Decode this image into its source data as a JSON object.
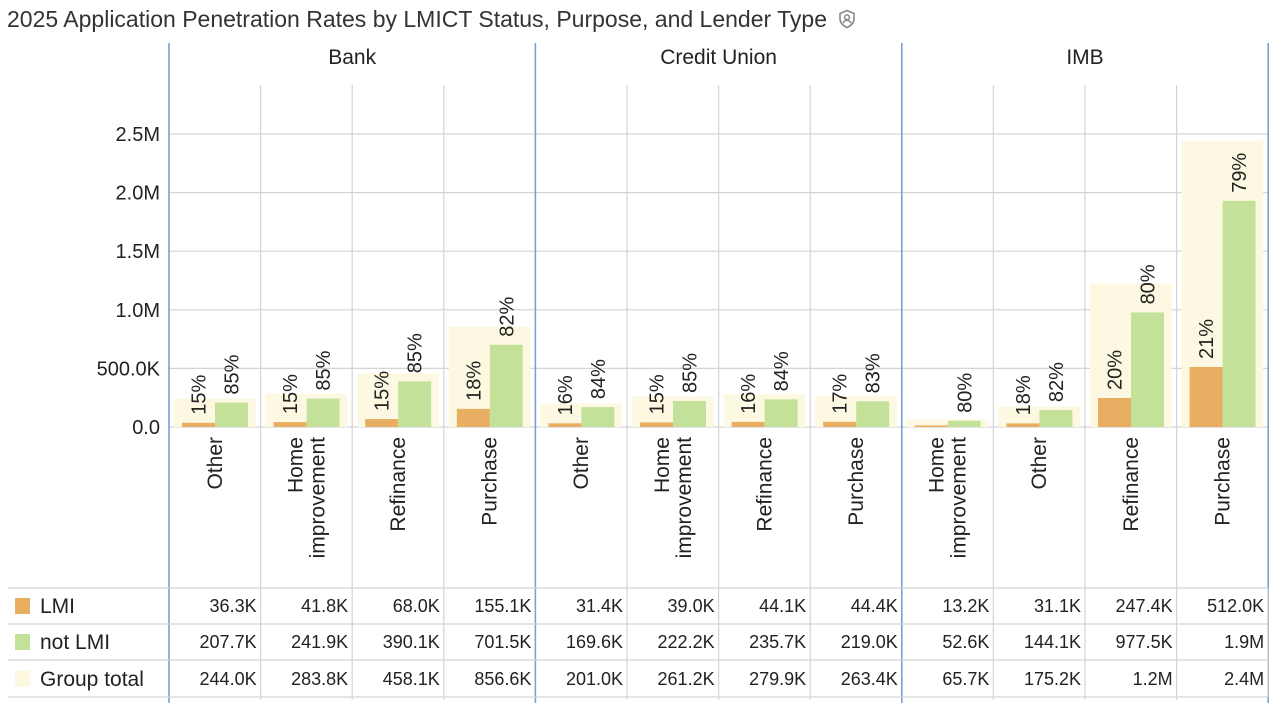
{
  "chart_data": {
    "type": "bar",
    "title": "2025 Application Penetration Rates by LMICT Status, Purpose, and Lender Type",
    "title_icon": "shield-person-icon",
    "ylim": [
      0,
      2900000
    ],
    "y_ticks": [
      {
        "value": 0,
        "label": "0.0"
      },
      {
        "value": 500000,
        "label": "500.0K"
      },
      {
        "value": 1000000,
        "label": "1.0M"
      },
      {
        "value": 1500000,
        "label": "1.5M"
      },
      {
        "value": 2000000,
        "label": "2.0M"
      },
      {
        "value": 2500000,
        "label": "2.5M"
      }
    ],
    "grid": true,
    "series": [
      {
        "name": "LMI",
        "color": "#e8ae62"
      },
      {
        "name": "not LMI",
        "color": "#c3e198"
      },
      {
        "name": "Group total",
        "color": "#fdf8e1"
      }
    ],
    "groups": [
      {
        "name": "Bank",
        "categories": [
          {
            "label": "Other",
            "lmi": 36300,
            "not_lmi": 207700,
            "total": 244000,
            "lmi_pct": "15%",
            "not_lmi_pct": "85%",
            "lmi_text": "36.3K",
            "not_lmi_text": "207.7K",
            "total_text": "244.0K"
          },
          {
            "label": "Home improvement",
            "lmi": 41800,
            "not_lmi": 241900,
            "total": 283800,
            "lmi_pct": "15%",
            "not_lmi_pct": "85%",
            "lmi_text": "41.8K",
            "not_lmi_text": "241.9K",
            "total_text": "283.8K"
          },
          {
            "label": "Refinance",
            "lmi": 68000,
            "not_lmi": 390100,
            "total": 458100,
            "lmi_pct": "15%",
            "not_lmi_pct": "85%",
            "lmi_text": "68.0K",
            "not_lmi_text": "390.1K",
            "total_text": "458.1K"
          },
          {
            "label": "Purchase",
            "lmi": 155100,
            "not_lmi": 701500,
            "total": 856600,
            "lmi_pct": "18%",
            "not_lmi_pct": "82%",
            "lmi_text": "155.1K",
            "not_lmi_text": "701.5K",
            "total_text": "856.6K"
          }
        ]
      },
      {
        "name": "Credit Union",
        "categories": [
          {
            "label": "Other",
            "lmi": 31400,
            "not_lmi": 169600,
            "total": 201000,
            "lmi_pct": "16%",
            "not_lmi_pct": "84%",
            "lmi_text": "31.4K",
            "not_lmi_text": "169.6K",
            "total_text": "201.0K"
          },
          {
            "label": "Home improvement",
            "lmi": 39000,
            "not_lmi": 222200,
            "total": 261200,
            "lmi_pct": "15%",
            "not_lmi_pct": "85%",
            "lmi_text": "39.0K",
            "not_lmi_text": "222.2K",
            "total_text": "261.2K"
          },
          {
            "label": "Refinance",
            "lmi": 44100,
            "not_lmi": 235700,
            "total": 279900,
            "lmi_pct": "16%",
            "not_lmi_pct": "84%",
            "lmi_text": "44.1K",
            "not_lmi_text": "235.7K",
            "total_text": "279.9K"
          },
          {
            "label": "Purchase",
            "lmi": 44400,
            "not_lmi": 219000,
            "total": 263400,
            "lmi_pct": "17%",
            "not_lmi_pct": "83%",
            "lmi_text": "44.4K",
            "not_lmi_text": "219.0K",
            "total_text": "263.4K"
          }
        ]
      },
      {
        "name": "IMB",
        "categories": [
          {
            "label": "Home improvement",
            "lmi": 13200,
            "not_lmi": 52600,
            "total": 65700,
            "lmi_pct": "",
            "not_lmi_pct": "80%",
            "lmi_text": "13.2K",
            "not_lmi_text": "52.6K",
            "total_text": "65.7K"
          },
          {
            "label": "Other",
            "lmi": 31100,
            "not_lmi": 144100,
            "total": 175200,
            "lmi_pct": "18%",
            "not_lmi_pct": "82%",
            "lmi_text": "31.1K",
            "not_lmi_text": "144.1K",
            "total_text": "175.2K"
          },
          {
            "label": "Refinance",
            "lmi": 247400,
            "not_lmi": 977500,
            "total": 1224900,
            "lmi_pct": "20%",
            "not_lmi_pct": "80%",
            "lmi_text": "247.4K",
            "not_lmi_text": "977.5K",
            "total_text": "1.2M"
          },
          {
            "label": "Purchase",
            "lmi": 512000,
            "not_lmi": 1930000,
            "total": 2442000,
            "lmi_pct": "21%",
            "not_lmi_pct": "79%",
            "lmi_text": "512.0K",
            "not_lmi_text": "1.9M",
            "total_text": "2.4M"
          }
        ]
      }
    ]
  }
}
